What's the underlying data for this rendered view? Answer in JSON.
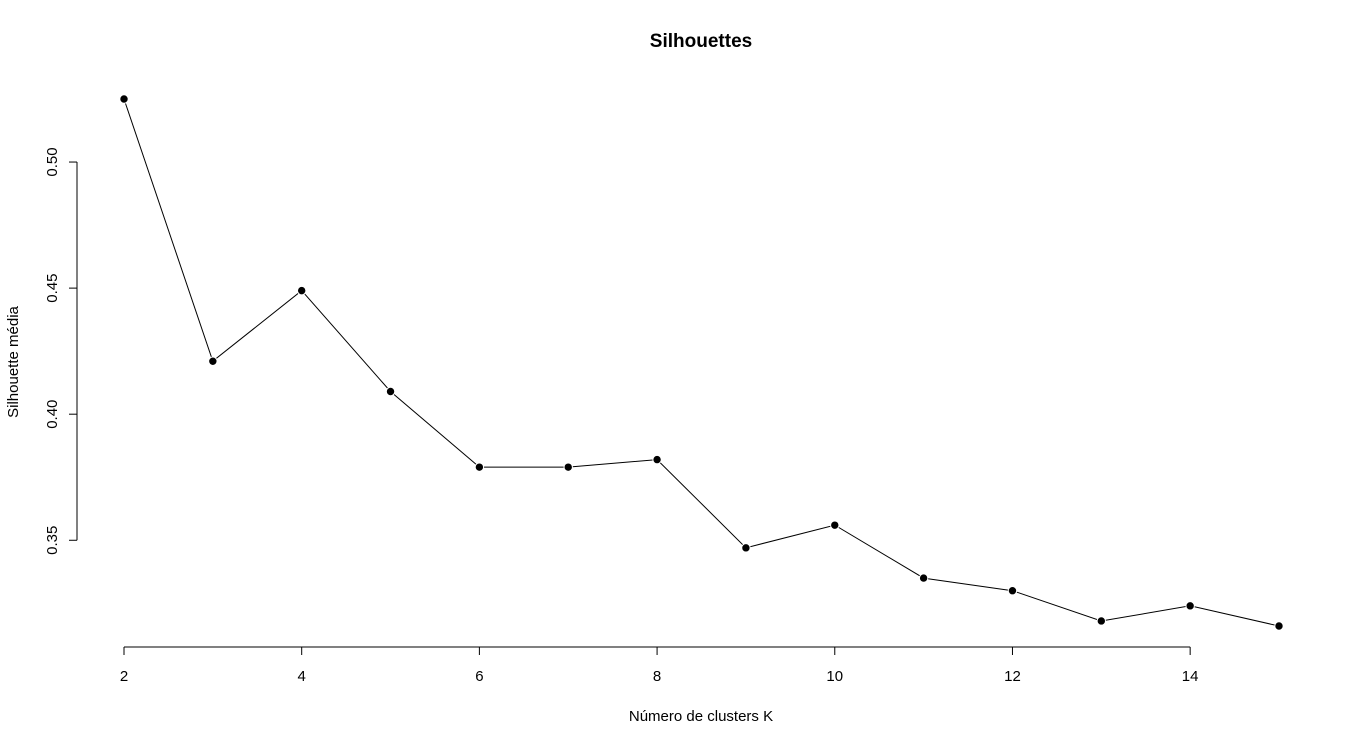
{
  "chart_data": {
    "type": "line",
    "title": "Silhouettes",
    "xlabel": "Número de clusters K",
    "ylabel": "Silhouette média",
    "x": [
      2,
      3,
      4,
      5,
      6,
      7,
      8,
      9,
      10,
      11,
      12,
      13,
      14,
      15
    ],
    "y": [
      0.525,
      0.421,
      0.449,
      0.409,
      0.379,
      0.379,
      0.382,
      0.347,
      0.356,
      0.335,
      0.33,
      0.318,
      0.324,
      0.316
    ],
    "x_ticks": [
      2,
      4,
      6,
      8,
      10,
      12,
      14
    ],
    "x_tick_labels": [
      "2",
      "4",
      "6",
      "8",
      "10",
      "12",
      "14"
    ],
    "y_ticks": [
      0.35,
      0.4,
      0.45,
      0.5
    ],
    "y_tick_labels": [
      "0.35",
      "0.40",
      "0.45",
      "0.50"
    ],
    "xlim": [
      2,
      15
    ],
    "ylim": [
      0.316,
      0.525
    ],
    "grid": false,
    "markers": "filled-circle",
    "line_color": "#000000"
  }
}
